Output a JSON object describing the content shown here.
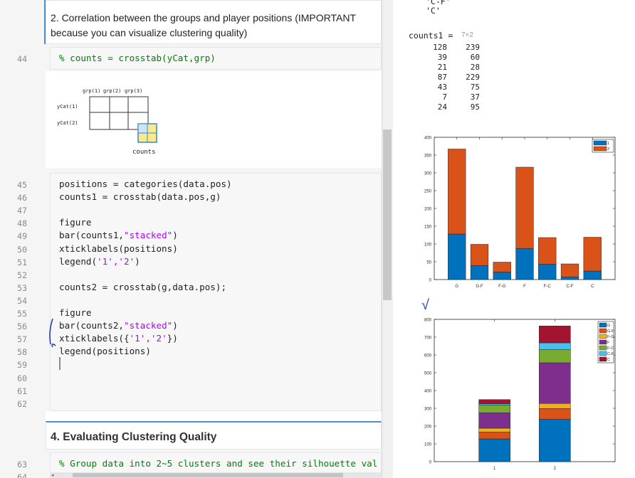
{
  "left_pane": {
    "section2_text": "2. Correlation between the groups and player positions (IMPORTANT because you can visualize clustering quality)",
    "section4_title": "4. Evaluating Clustering Quality",
    "line_numbers": [
      "44",
      "45",
      "46",
      "47",
      "48",
      "49",
      "50",
      "51",
      "52",
      "53",
      "54",
      "55",
      "56",
      "57",
      "58",
      "59",
      "60",
      "61",
      "62",
      "63",
      "64"
    ],
    "code_44": "% counts = crosstab(yCat,grp)",
    "diagram": {
      "col_labels": [
        "grp(1)",
        "grp(2)",
        "grp(3)"
      ],
      "row_labels": [
        "yCat(1)",
        "yCat(2)"
      ],
      "caption": "counts"
    },
    "code_lines": [
      {
        "pre": "positions = categories(data.pos)",
        "str": "",
        "post": ""
      },
      {
        "pre": "counts1 = crosstab(data.pos,g)",
        "str": "",
        "post": ""
      },
      {
        "pre": "",
        "str": "",
        "post": ""
      },
      {
        "pre": "figure",
        "str": "",
        "post": ""
      },
      {
        "pre": "bar(counts1,",
        "str": "\"stacked\"",
        "post": ")"
      },
      {
        "pre": "xticklabels(positions)",
        "str": "",
        "post": ""
      },
      {
        "pre": "legend(",
        "str": "'1','2'",
        "post": ")"
      },
      {
        "pre": "",
        "str": "",
        "post": ""
      },
      {
        "pre": "counts2 = crosstab(g,data.pos);",
        "str": "",
        "post": ""
      },
      {
        "pre": "",
        "str": "",
        "post": ""
      },
      {
        "pre": "figure",
        "str": "",
        "post": ""
      },
      {
        "pre": "bar(counts2,",
        "str": "\"stacked\"",
        "post": ")"
      },
      {
        "pre": "xticklabels({",
        "str": "'1','2'",
        "post": "})"
      },
      {
        "pre": "legend(positions)",
        "str": "",
        "post": ""
      }
    ],
    "code_63": "% Group data into 2~5 clusters and see their silhouette val"
  },
  "right_pane": {
    "top_strings": [
      "'C-F'",
      "'C'"
    ],
    "counts1_label": "counts1 =",
    "counts1_dim": "7×2",
    "counts1_rows": [
      [
        128,
        239
      ],
      [
        39,
        60
      ],
      [
        21,
        28
      ],
      [
        87,
        229
      ],
      [
        43,
        75
      ],
      [
        7,
        37
      ],
      [
        24,
        95
      ]
    ],
    "check_mark": "√"
  },
  "colors": {
    "blue": "#0072bd",
    "orange": "#d95319",
    "yellow": "#edb120",
    "purple": "#7e2f8e",
    "green": "#77ac30",
    "cyan": "#4dbeee",
    "red": "#a2142f"
  },
  "chart_data": [
    {
      "type": "bar",
      "stacked": true,
      "categories": [
        "G",
        "G-F",
        "F-G",
        "F",
        "F-C",
        "C-F",
        "C"
      ],
      "series": [
        {
          "name": "1",
          "values": [
            128,
            39,
            21,
            87,
            43,
            7,
            24
          ]
        },
        {
          "name": "2",
          "values": [
            239,
            60,
            28,
            229,
            75,
            37,
            95
          ]
        }
      ],
      "ylim": [
        0,
        400
      ],
      "yticks": [
        0,
        50,
        100,
        150,
        200,
        250,
        300,
        350,
        400
      ],
      "legend": "top-right"
    },
    {
      "type": "bar",
      "stacked": true,
      "categories": [
        "1",
        "2"
      ],
      "series": [
        {
          "name": "G",
          "values": [
            128,
            239
          ]
        },
        {
          "name": "G-F",
          "values": [
            39,
            60
          ]
        },
        {
          "name": "F-G",
          "values": [
            21,
            28
          ]
        },
        {
          "name": "F",
          "values": [
            87,
            229
          ]
        },
        {
          "name": "F-C",
          "values": [
            43,
            75
          ]
        },
        {
          "name": "C-F",
          "values": [
            7,
            37
          ]
        },
        {
          "name": "C",
          "values": [
            24,
            95
          ]
        }
      ],
      "ylim": [
        0,
        800
      ],
      "yticks": [
        0,
        100,
        200,
        300,
        400,
        500,
        600,
        700,
        800
      ],
      "legend": "top-right"
    }
  ]
}
